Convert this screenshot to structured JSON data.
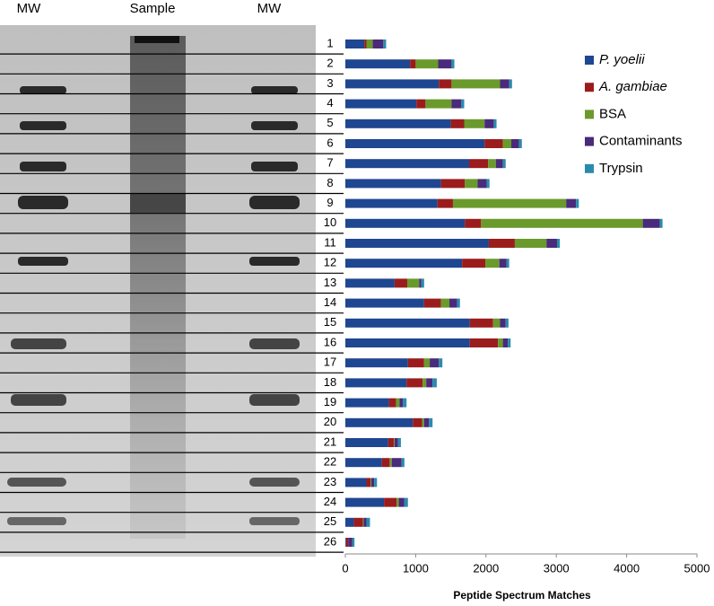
{
  "gel_lanes": [
    "MW",
    "Sample",
    "MW"
  ],
  "chart_data": {
    "type": "stacked-bar-horizontal",
    "xlabel": "Peptide Spectrum Matches",
    "categories": [
      "1",
      "2",
      "3",
      "4",
      "5",
      "6",
      "7",
      "8",
      "9",
      "10",
      "11",
      "12",
      "13",
      "14",
      "15",
      "16",
      "17",
      "18",
      "19",
      "20",
      "21",
      "22",
      "23",
      "24",
      "25",
      "26"
    ],
    "series": [
      {
        "name": "P. yoelii",
        "color": "#1f4690",
        "italic": true,
        "values": [
          270,
          920,
          1330,
          1010,
          1500,
          1980,
          1760,
          1360,
          1310,
          1700,
          2040,
          1660,
          700,
          1120,
          1770,
          1770,
          890,
          870,
          620,
          960,
          610,
          520,
          300,
          550,
          120,
          10
        ]
      },
      {
        "name": "A. gambiae",
        "color": "#9b1c1c",
        "italic": true,
        "values": [
          30,
          80,
          180,
          130,
          190,
          260,
          270,
          340,
          220,
          230,
          370,
          330,
          180,
          240,
          330,
          400,
          230,
          230,
          100,
          130,
          80,
          110,
          60,
          180,
          130,
          30
        ]
      },
      {
        "name": "BSA",
        "color": "#6a9a2c",
        "italic": false,
        "values": [
          90,
          320,
          690,
          370,
          290,
          120,
          110,
          180,
          1610,
          2300,
          450,
          200,
          170,
          120,
          100,
          70,
          80,
          50,
          50,
          30,
          10,
          30,
          10,
          30,
          10,
          0
        ]
      },
      {
        "name": "Contaminants",
        "color": "#4a2a7a",
        "italic": false,
        "values": [
          150,
          190,
          130,
          140,
          130,
          110,
          100,
          130,
          140,
          240,
          150,
          100,
          30,
          110,
          80,
          70,
          130,
          90,
          50,
          70,
          50,
          140,
          40,
          80,
          40,
          60
        ]
      },
      {
        "name": "Trypsin",
        "color": "#2a8aae",
        "italic": false,
        "values": [
          40,
          40,
          40,
          40,
          40,
          40,
          40,
          40,
          40,
          40,
          40,
          40,
          40,
          40,
          40,
          40,
          50,
          60,
          50,
          50,
          40,
          40,
          40,
          50,
          50,
          30
        ]
      }
    ],
    "xlim": [
      0,
      5000
    ],
    "xticks": [
      0,
      1000,
      2000,
      3000,
      4000,
      5000
    ],
    "legend": "right"
  }
}
